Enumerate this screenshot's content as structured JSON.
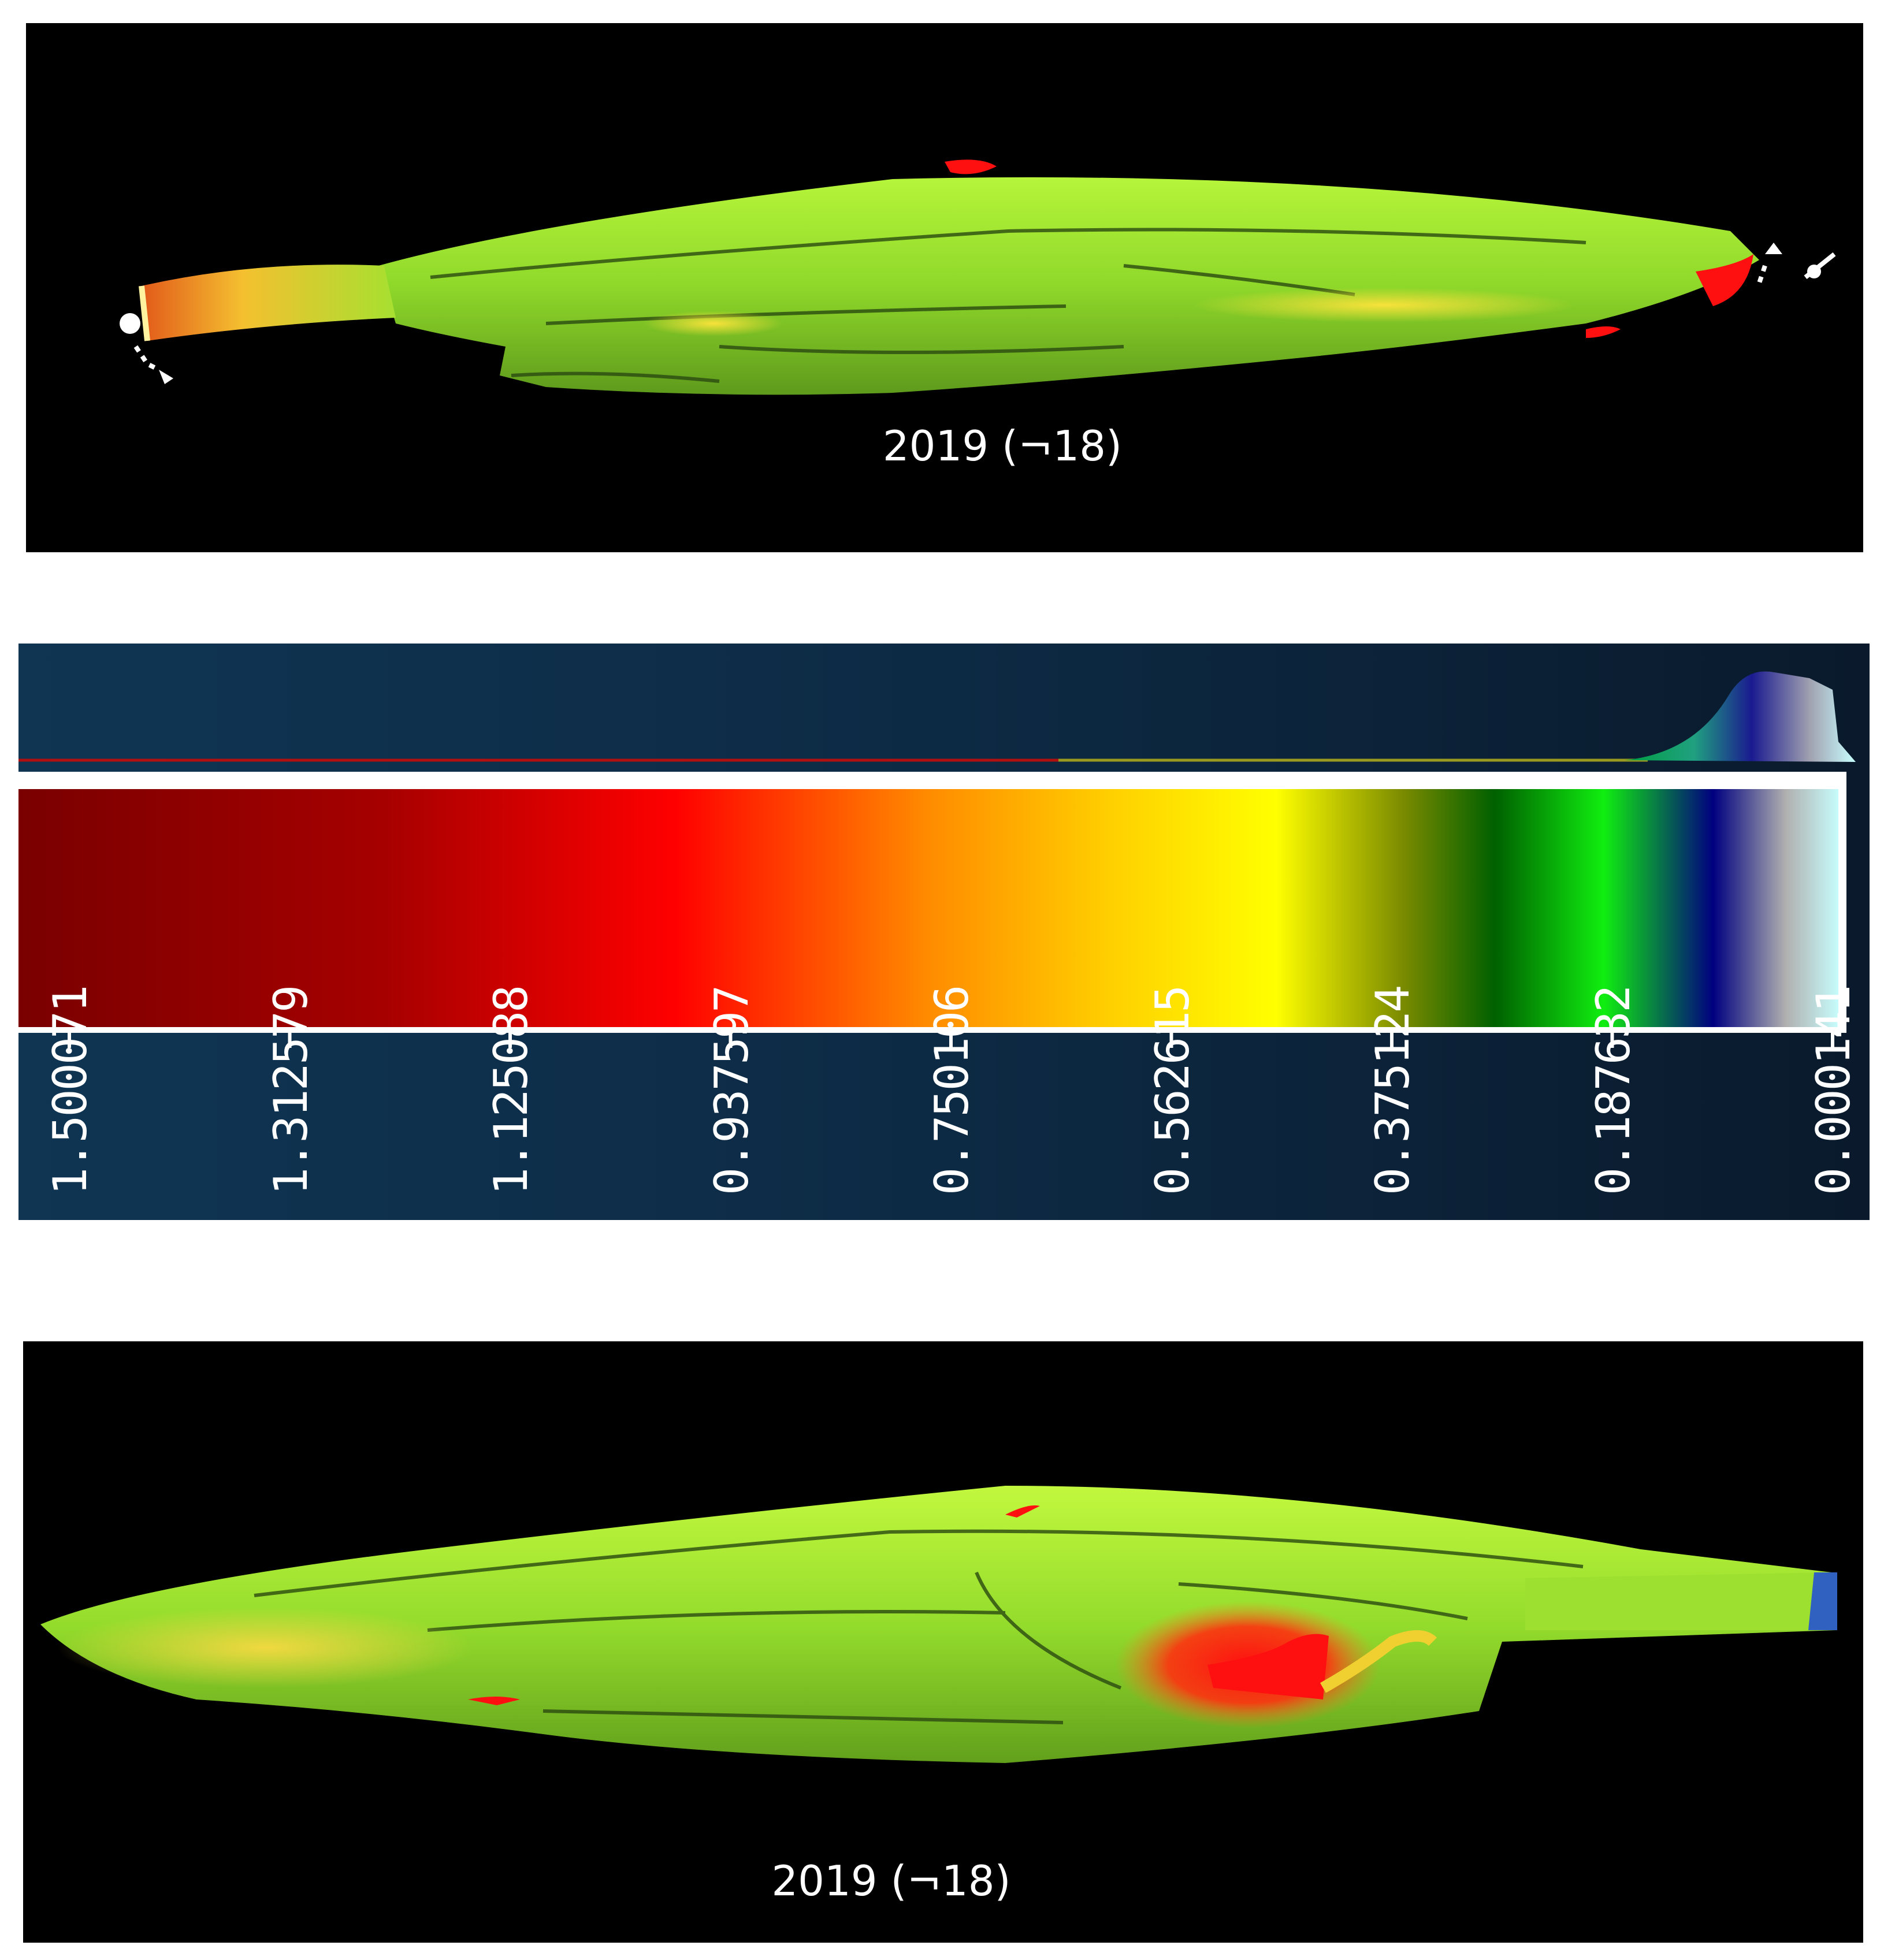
{
  "top_view": {
    "caption": "2019 (¬18)"
  },
  "bottom_view": {
    "caption": "2019 (¬18)"
  },
  "color_scale": {
    "tick_labels": [
      "1.500071",
      "1.312579",
      "1.125088",
      "0.937597",
      "0.750106",
      "0.562615",
      "0.375124",
      "0.187632",
      "0.000141"
    ],
    "colors": {
      "dark_red": "#7a0000",
      "red": "#ff0000",
      "orange": "#ffa500",
      "yellow": "#ffff00",
      "green": "#00c000",
      "blue": "#000080",
      "grey": "#b0b0b0",
      "cyan": "#c8ffff"
    }
  }
}
